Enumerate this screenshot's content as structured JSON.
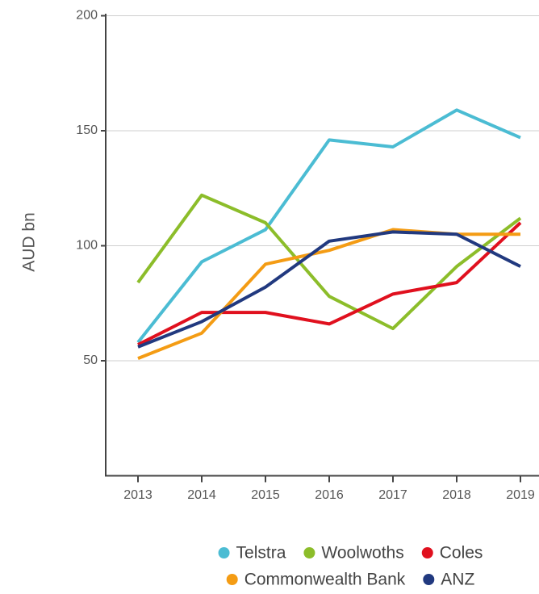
{
  "chart_data": {
    "type": "line",
    "y_label": "AUD bn",
    "categories": [
      "2013",
      "2014",
      "2015",
      "2016",
      "2017",
      "2018",
      "2019"
    ],
    "series": [
      {
        "name": "Telstra",
        "color": "#4bbcd3",
        "values": [
          58,
          93,
          107,
          146,
          143,
          159,
          147
        ]
      },
      {
        "name": "Woolwoths",
        "color": "#8cbd2a",
        "values": [
          84,
          122,
          110,
          78,
          64,
          91,
          112
        ]
      },
      {
        "name": "Coles",
        "color": "#e0101e",
        "values": [
          57,
          71,
          71,
          66,
          79,
          84,
          110
        ]
      },
      {
        "name": "Commonwealth Bank",
        "color": "#f49c14",
        "values": [
          51,
          62,
          92,
          98,
          107,
          105,
          105
        ]
      },
      {
        "name": "ANZ",
        "color": "#21397f",
        "values": [
          56,
          67,
          82,
          102,
          106,
          105,
          91
        ]
      }
    ],
    "ylim": [
      0,
      200
    ],
    "yticks": [
      50,
      100,
      150,
      200
    ],
    "grid": true
  }
}
